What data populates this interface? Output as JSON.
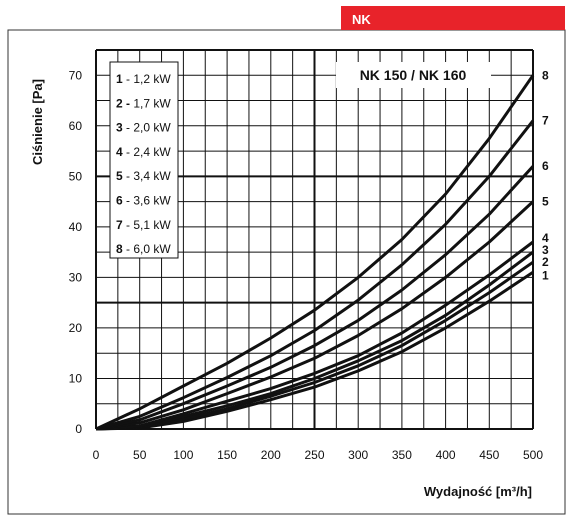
{
  "header": {
    "tag": "NK",
    "tag_color": "#e8232a"
  },
  "chart_data": {
    "type": "line",
    "title": "NK 150 / NK 160",
    "xlabel": "Wydajność [m³/h]",
    "ylabel": "Ciśnienie [Pa]",
    "xlim": [
      0,
      500
    ],
    "ylim": [
      0,
      75
    ],
    "xticks": [
      "0",
      "50",
      "100",
      "150",
      "200",
      "250",
      "300",
      "350",
      "400",
      "450",
      "500"
    ],
    "yticks": [
      "0",
      "10",
      "20",
      "30",
      "40",
      "50",
      "60",
      "70"
    ],
    "grid": true,
    "legend_position": "top-left",
    "legend": [
      {
        "num": "1",
        "label": " - 1,2 kW"
      },
      {
        "num": "2 -",
        "label": " 1,7 kW"
      },
      {
        "num": "3",
        "label": " - 2,0 kW"
      },
      {
        "num": "4",
        "label": " - 2,4 kW"
      },
      {
        "num": "5",
        "label": " - 3,4 kW"
      },
      {
        "num": "6",
        "label": " - 3,6 kW"
      },
      {
        "num": "7",
        "label": " - 5,1 kW"
      },
      {
        "num": "8",
        "label": " - 6,0 kW"
      }
    ],
    "series": [
      {
        "name": "1",
        "x": [
          0,
          50,
          100,
          150,
          200,
          250,
          300,
          350,
          400,
          450,
          500
        ],
        "y": [
          0,
          0.2,
          1.5,
          3.5,
          5.8,
          8.3,
          11.5,
          15.3,
          20,
          25.3,
          31
        ]
      },
      {
        "name": "2",
        "x": [
          0,
          50,
          100,
          150,
          200,
          250,
          300,
          350,
          400,
          450,
          500
        ],
        "y": [
          0,
          0.3,
          2,
          4,
          6.5,
          9.2,
          12.5,
          16.5,
          21.5,
          27,
          33
        ]
      },
      {
        "name": "3",
        "x": [
          0,
          50,
          100,
          150,
          200,
          250,
          300,
          350,
          400,
          450,
          500
        ],
        "y": [
          0,
          0.4,
          2.5,
          4.6,
          7,
          10,
          13.5,
          17.5,
          22.5,
          28.5,
          35
        ]
      },
      {
        "name": "4",
        "x": [
          0,
          50,
          100,
          150,
          200,
          250,
          300,
          350,
          400,
          450,
          500
        ],
        "y": [
          0,
          0.6,
          3,
          5.5,
          8,
          11,
          14.5,
          19,
          24.5,
          30.5,
          37
        ]
      },
      {
        "name": "5",
        "x": [
          0,
          50,
          100,
          150,
          200,
          250,
          300,
          350,
          400,
          450,
          500
        ],
        "y": [
          0,
          1.2,
          3.8,
          7,
          10.3,
          14,
          18.5,
          23.8,
          30,
          37,
          45
        ]
      },
      {
        "name": "6",
        "x": [
          0,
          50,
          100,
          150,
          200,
          250,
          300,
          350,
          400,
          450,
          500
        ],
        "y": [
          0,
          1.8,
          5,
          8.5,
          12.2,
          16.5,
          21.5,
          27.5,
          34.5,
          42.5,
          52
        ]
      },
      {
        "name": "7",
        "x": [
          0,
          50,
          100,
          150,
          200,
          250,
          300,
          350,
          400,
          450,
          500
        ],
        "y": [
          0,
          2.5,
          6.2,
          10.2,
          14.5,
          19.5,
          25.5,
          32.5,
          40.5,
          50,
          61
        ]
      },
      {
        "name": "8",
        "x": [
          0,
          50,
          100,
          150,
          200,
          250,
          300,
          350,
          400,
          450,
          500
        ],
        "y": [
          0,
          4,
          8.5,
          13,
          18,
          23.5,
          30,
          37.5,
          46.5,
          57.5,
          70
        ]
      }
    ]
  }
}
